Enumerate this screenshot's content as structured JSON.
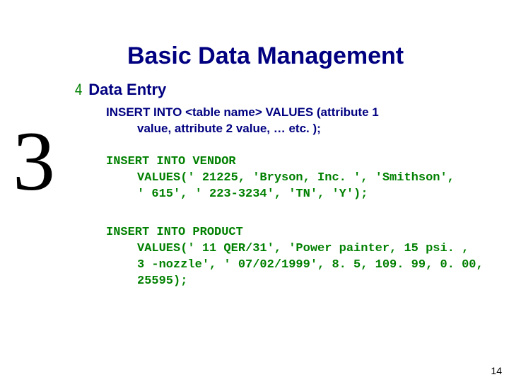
{
  "chapter_number": "3",
  "title": "Basic Data Management",
  "bullet": {
    "icon": "4",
    "text": "Data Entry"
  },
  "paragraphs": {
    "syntax_l1": "INSERT INTO <table name> VALUES (attribute 1",
    "syntax_l2": "value, attribute 2 value, … etc. );",
    "vendor_l1": "INSERT INTO VENDOR",
    "vendor_l2": "VALUES(' 21225, 'Bryson, Inc. ', 'Smithson',",
    "vendor_l3": "' 615', ' 223-3234', 'TN', 'Y');",
    "product_l1": "INSERT INTO PRODUCT",
    "product_l2": "VALUES(' 11 QER/31', 'Power painter, 15 psi. ,",
    "product_l3": "3 -nozzle', ' 07/02/1999', 8. 5, 109. 99, 0. 00,",
    "product_l4": "25595);"
  },
  "page_number": "14",
  "colors": {
    "title": "#000080",
    "accent": "#008000",
    "text": "#000000",
    "background": "#ffffff"
  }
}
